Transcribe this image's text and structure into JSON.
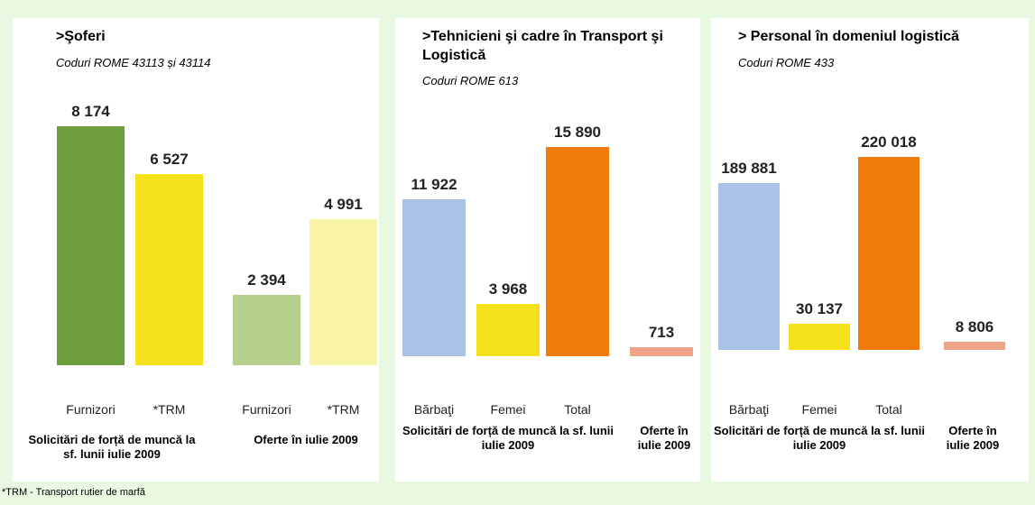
{
  "chart_data": [
    {
      "type": "bar",
      "title": ">Şoferi",
      "subtitle": "Coduri ROME 43113 și 43114",
      "categories": [
        "Furnizori",
        "*TRM",
        "Furnizori",
        "*TRM"
      ],
      "values": [
        8174,
        6527,
        2394,
        4991
      ],
      "value_labels": [
        "8 174",
        "6 527",
        "2 394",
        "4 991"
      ],
      "colors": [
        "#6e9e3c",
        "#f6e21a",
        "#b5d08c",
        "#f9f3a8"
      ],
      "group_labels": [
        "Solicitări de forță de muncă la sf. lunii iulie 2009",
        "Oferte în iulie 2009"
      ],
      "ylim": [
        0,
        9000
      ]
    },
    {
      "type": "bar",
      "title": ">Tehnicieni şi cadre în Transport şi Logistică",
      "subtitle": "Coduri ROME 613",
      "categories": [
        "Bărbaţi",
        "Femei",
        "Total",
        null
      ],
      "values": [
        11922,
        3968,
        15890,
        713
      ],
      "value_labels": [
        "11 922",
        "3 968",
        "15 890",
        "713"
      ],
      "colors": [
        "#a9c2e6",
        "#f6e21a",
        "#f07a0c",
        "#f0a386"
      ],
      "group_labels": [
        "Solicitări de forță de muncă la sf. lunii iulie 2009",
        "Oferte în iulie 2009"
      ],
      "ylim": [
        0,
        20000
      ]
    },
    {
      "type": "bar",
      "title": "> Personal în domeniul logistică",
      "subtitle": "Coduri ROME 433",
      "categories": [
        "Bărbaţi",
        "Femei",
        "Total",
        null
      ],
      "values": [
        189881,
        30137,
        220018,
        8806
      ],
      "value_labels": [
        "189 881",
        "30 137",
        "220 018",
        "8 806"
      ],
      "colors": [
        "#a9c2e6",
        "#f6e21a",
        "#f07a0c",
        "#f0a386"
      ],
      "group_labels": [
        "Solicitări de forță de muncă la sf. lunii iulie 2009",
        "Oferte în iulie 2009"
      ],
      "ylim": [
        0,
        300000
      ]
    }
  ],
  "footnote": "*TRM - Transport rutier de marfă"
}
